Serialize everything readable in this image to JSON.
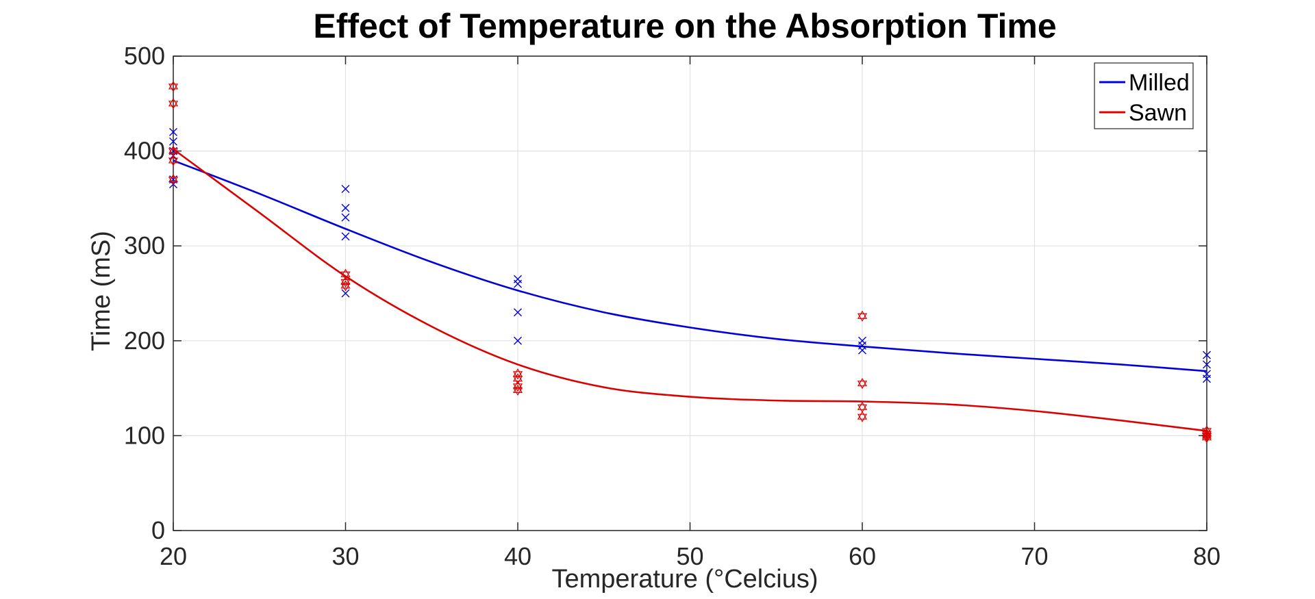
{
  "chart_data": {
    "type": "scatter",
    "title": "Effect of Temperature on the Absorption Time",
    "xlabel": "Temperature (°Celcius)",
    "ylabel": "Time (mS)",
    "xlim": [
      20,
      80
    ],
    "ylim": [
      0,
      500
    ],
    "xticks": [
      20,
      30,
      40,
      50,
      60,
      70,
      80
    ],
    "yticks": [
      0,
      100,
      200,
      300,
      400,
      500
    ],
    "grid": true,
    "legend_position": "top-right",
    "series": [
      {
        "name": "Milled",
        "color": "#0000dd",
        "marker": "x",
        "points": [
          {
            "x": 20,
            "y": 420
          },
          {
            "x": 20,
            "y": 410
          },
          {
            "x": 20,
            "y": 400
          },
          {
            "x": 20,
            "y": 395
          },
          {
            "x": 20,
            "y": 370
          },
          {
            "x": 20,
            "y": 365
          },
          {
            "x": 30,
            "y": 360
          },
          {
            "x": 30,
            "y": 340
          },
          {
            "x": 30,
            "y": 330
          },
          {
            "x": 30,
            "y": 310
          },
          {
            "x": 30,
            "y": 250
          },
          {
            "x": 40,
            "y": 265
          },
          {
            "x": 40,
            "y": 260
          },
          {
            "x": 40,
            "y": 230
          },
          {
            "x": 40,
            "y": 200
          },
          {
            "x": 60,
            "y": 200
          },
          {
            "x": 60,
            "y": 195
          },
          {
            "x": 60,
            "y": 190
          },
          {
            "x": 80,
            "y": 185
          },
          {
            "x": 80,
            "y": 175
          },
          {
            "x": 80,
            "y": 165
          },
          {
            "x": 80,
            "y": 160
          }
        ],
        "fit": [
          {
            "x": 20,
            "y": 390
          },
          {
            "x": 25,
            "y": 355
          },
          {
            "x": 30,
            "y": 318
          },
          {
            "x": 35,
            "y": 283
          },
          {
            "x": 40,
            "y": 253
          },
          {
            "x": 45,
            "y": 230
          },
          {
            "x": 50,
            "y": 214
          },
          {
            "x": 55,
            "y": 202
          },
          {
            "x": 60,
            "y": 194
          },
          {
            "x": 65,
            "y": 187
          },
          {
            "x": 70,
            "y": 181
          },
          {
            "x": 75,
            "y": 175
          },
          {
            "x": 80,
            "y": 168
          }
        ]
      },
      {
        "name": "Sawn",
        "color": "#dd0000",
        "marker": "hexagram",
        "points": [
          {
            "x": 20,
            "y": 468
          },
          {
            "x": 20,
            "y": 450
          },
          {
            "x": 20,
            "y": 400
          },
          {
            "x": 20,
            "y": 390
          },
          {
            "x": 20,
            "y": 370
          },
          {
            "x": 30,
            "y": 270
          },
          {
            "x": 30,
            "y": 262
          },
          {
            "x": 30,
            "y": 258
          },
          {
            "x": 40,
            "y": 165
          },
          {
            "x": 40,
            "y": 160
          },
          {
            "x": 40,
            "y": 152
          },
          {
            "x": 40,
            "y": 148
          },
          {
            "x": 60,
            "y": 226
          },
          {
            "x": 60,
            "y": 155
          },
          {
            "x": 60,
            "y": 130
          },
          {
            "x": 60,
            "y": 120
          },
          {
            "x": 80,
            "y": 105
          },
          {
            "x": 80,
            "y": 102
          },
          {
            "x": 80,
            "y": 100
          },
          {
            "x": 80,
            "y": 98
          }
        ],
        "fit": [
          {
            "x": 20,
            "y": 402
          },
          {
            "x": 25,
            "y": 335
          },
          {
            "x": 30,
            "y": 268
          },
          {
            "x": 35,
            "y": 215
          },
          {
            "x": 40,
            "y": 175
          },
          {
            "x": 45,
            "y": 151
          },
          {
            "x": 50,
            "y": 141
          },
          {
            "x": 55,
            "y": 137
          },
          {
            "x": 60,
            "y": 136
          },
          {
            "x": 65,
            "y": 133
          },
          {
            "x": 70,
            "y": 126
          },
          {
            "x": 75,
            "y": 116
          },
          {
            "x": 80,
            "y": 105
          }
        ]
      }
    ]
  }
}
